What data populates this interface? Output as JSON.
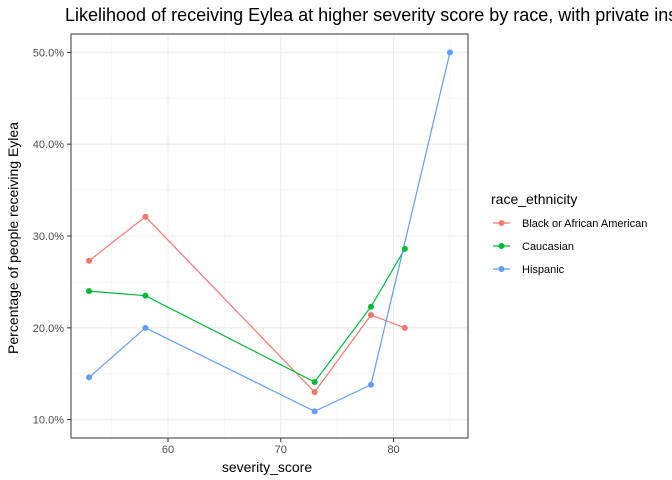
{
  "chart_data": {
    "type": "line",
    "title": "Likelihood of receiving Eylea at higher severity score by race, with private insurance",
    "xlabel": "severity_score",
    "ylabel": "Percentage of people receiving Eylea",
    "xlim": [
      51.4,
      86.6
    ],
    "ylim": [
      8.0,
      52.0
    ],
    "x_ticks": [
      60,
      70,
      80
    ],
    "y_ticks": [
      10,
      20,
      30,
      40,
      50
    ],
    "y_tick_labels": [
      "10.0%",
      "20.0%",
      "30.0%",
      "40.0%",
      "50.0%"
    ],
    "grid": true,
    "legend": {
      "title": "race_ethnicity",
      "position": "right"
    },
    "series": [
      {
        "name": "Black or African American",
        "color": "#F8766D",
        "x": [
          53,
          58,
          73,
          78,
          81
        ],
        "y": [
          27.3,
          32.1,
          13.0,
          21.4,
          20.0
        ]
      },
      {
        "name": "Caucasian",
        "color": "#00BA38",
        "x": [
          53,
          58,
          73,
          78,
          81
        ],
        "y": [
          24.0,
          23.5,
          14.1,
          22.3,
          28.6
        ]
      },
      {
        "name": "Hispanic",
        "color": "#619CFF",
        "x": [
          53,
          58,
          73,
          78,
          85
        ],
        "y": [
          14.6,
          20.0,
          10.9,
          13.8,
          50.0
        ]
      }
    ]
  }
}
